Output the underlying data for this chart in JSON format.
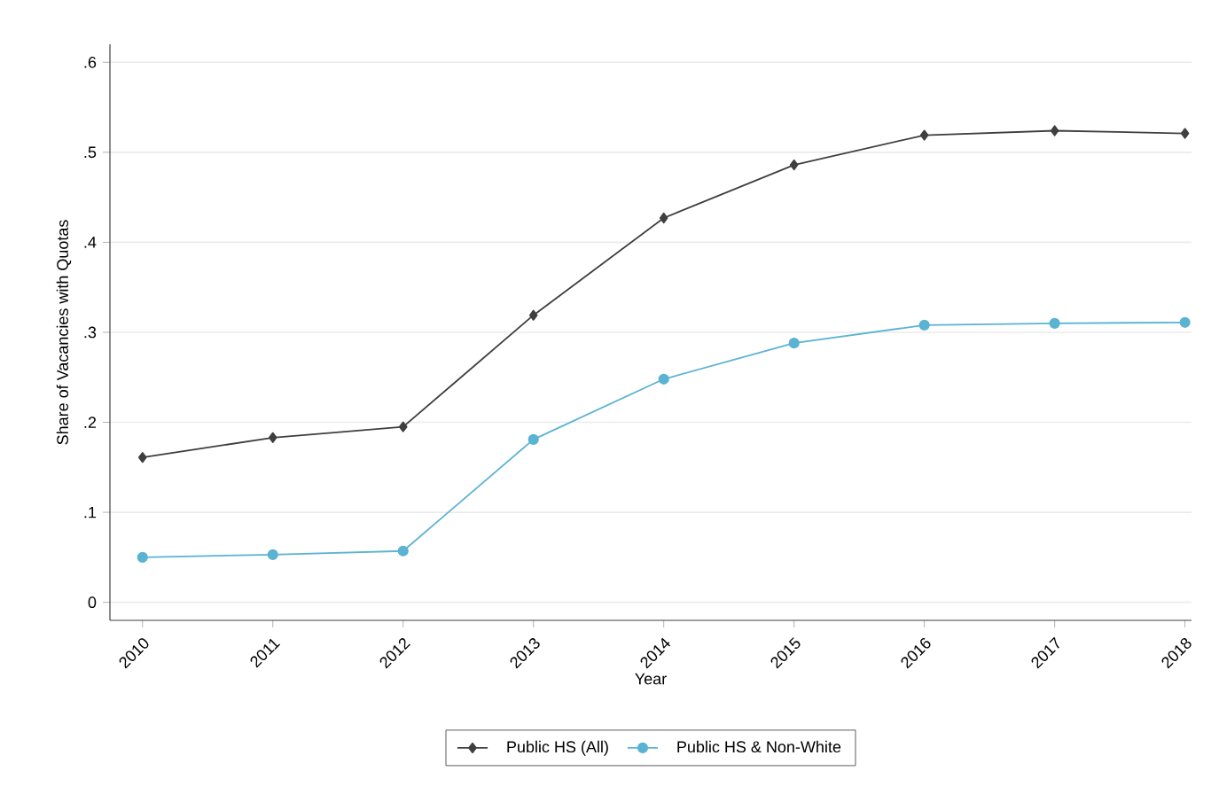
{
  "chart_data": {
    "type": "line",
    "xlabel": "Year",
    "ylabel": "Share of Vacancies with Quotas",
    "categories": [
      "2010",
      "2011",
      "2012",
      "2013",
      "2014",
      "2015",
      "2016",
      "2017",
      "2018"
    ],
    "series": [
      {
        "name": "Public HS (All)",
        "color": "#3f3f3f",
        "marker": "diamond",
        "values": [
          0.161,
          0.183,
          0.195,
          0.319,
          0.427,
          0.486,
          0.519,
          0.524,
          0.521
        ]
      },
      {
        "name": "Public HS & Non-White",
        "color": "#5ab3d3",
        "marker": "circle",
        "values": [
          0.05,
          0.053,
          0.057,
          0.181,
          0.248,
          0.288,
          0.308,
          0.31,
          0.311
        ]
      }
    ],
    "ylim": [
      -0.02,
      0.62
    ],
    "yticks": [
      0,
      {
        "value": 0.1,
        "label": ".1"
      },
      {
        "value": 0.2,
        "label": ".2"
      },
      {
        "value": 0.3,
        "label": ".3"
      },
      {
        "value": 0.4,
        "label": ".4"
      },
      {
        "value": 0.5,
        "label": ".5"
      },
      {
        "value": 0.6,
        "label": ".6"
      }
    ],
    "grid": "y",
    "legend": "bottom",
    "line_style": "solid"
  }
}
